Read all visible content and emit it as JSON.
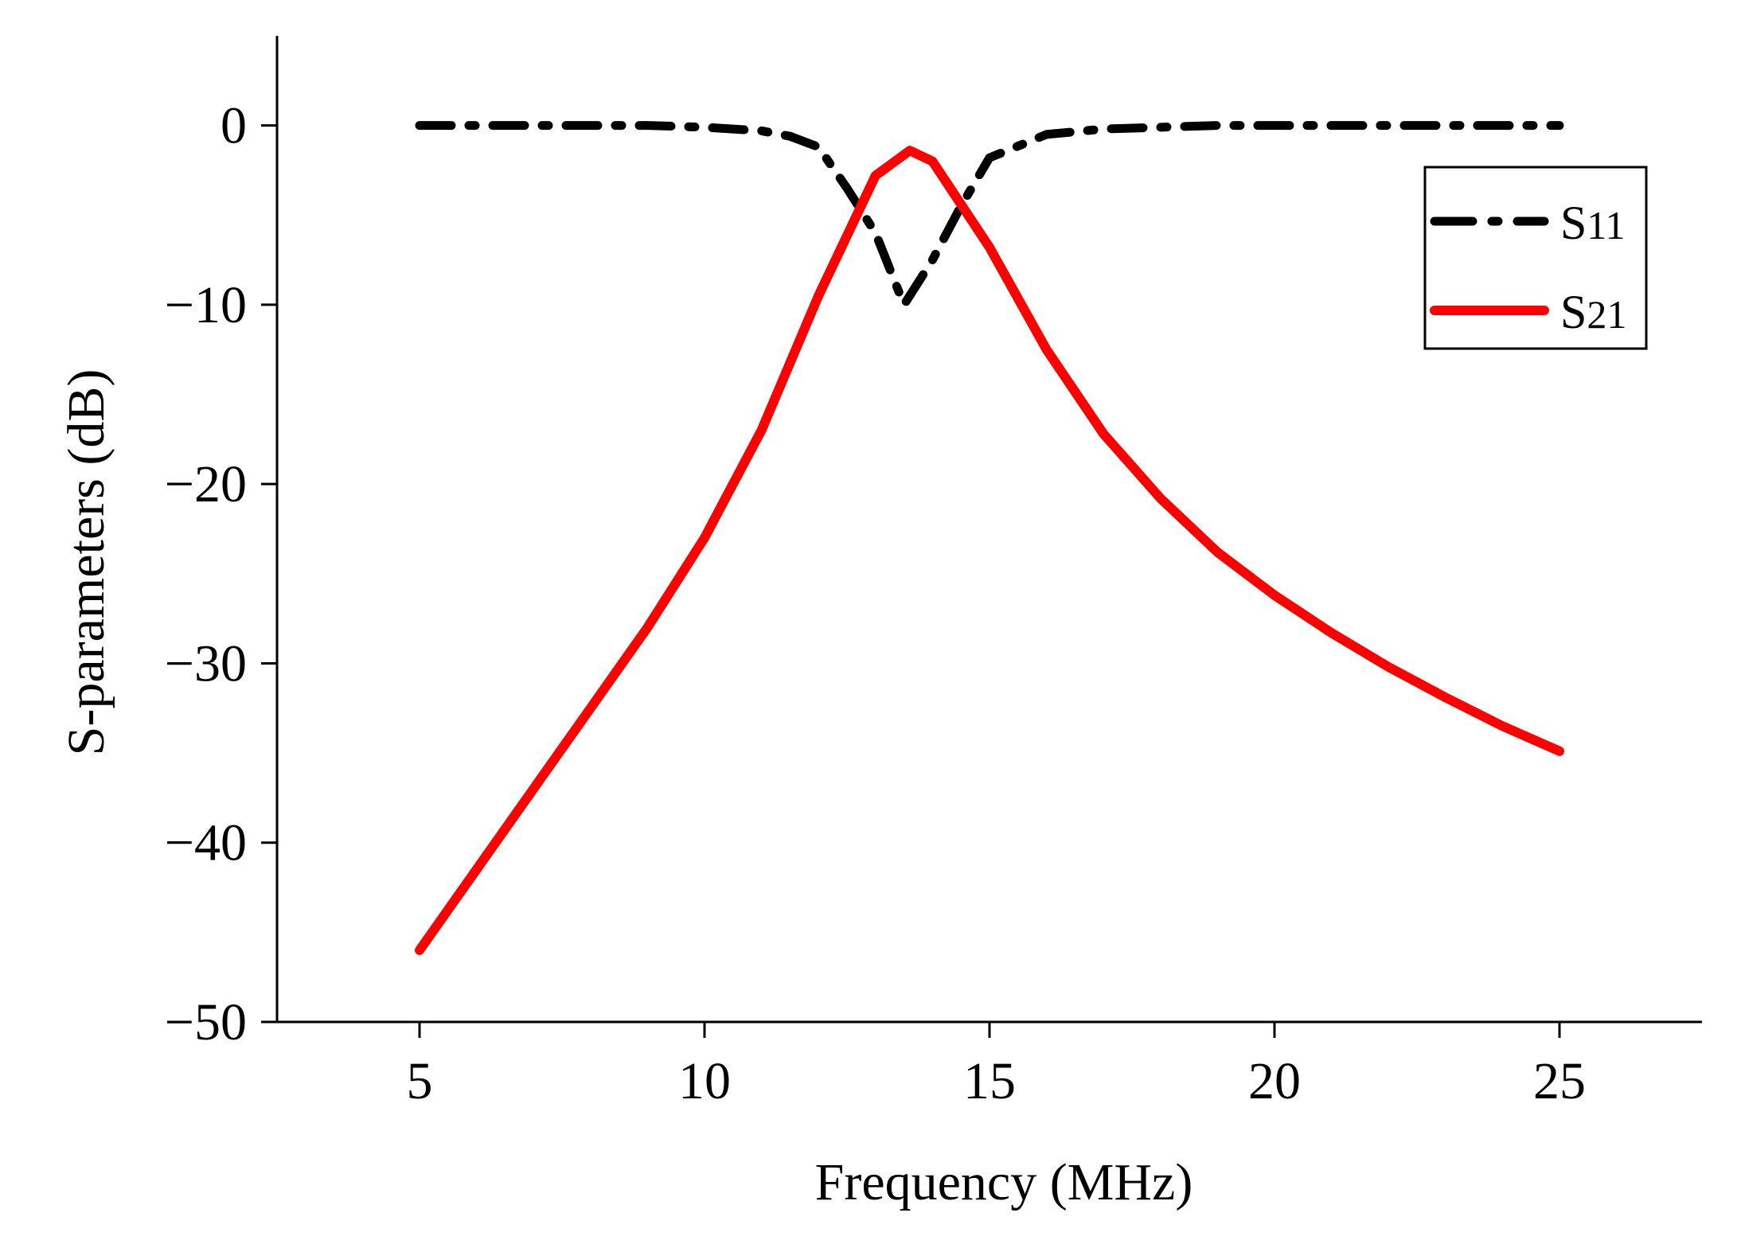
{
  "chart_data": {
    "type": "line",
    "title": "",
    "xlabel": "Frequency (MHz)",
    "ylabel": "S-parameters (dB)",
    "xlim": [
      2.5,
      27.5
    ],
    "ylim": [
      -50,
      5
    ],
    "xticks": [
      5,
      10,
      15,
      20,
      25
    ],
    "yticks": [
      0,
      -10,
      -20,
      -30,
      -40,
      -50
    ],
    "xtick_labels": [
      "5",
      "10",
      "15",
      "20",
      "25"
    ],
    "ytick_labels": [
      "0",
      "−10",
      "−20",
      "−30",
      "−40",
      "−50"
    ],
    "grid": false,
    "legend_position": "top-right",
    "series": [
      {
        "name": "S11",
        "legend_main": "S",
        "legend_sub": "11",
        "color": "#000000",
        "style": "dash-dot",
        "x": [
          5,
          6,
          7,
          8,
          9,
          10,
          11,
          11.5,
          12,
          12.5,
          13,
          13.5,
          14,
          14.5,
          15,
          16,
          17,
          18,
          19,
          20,
          21,
          22,
          23,
          24,
          25
        ],
        "values": [
          0,
          0,
          0,
          0,
          0,
          -0.1,
          -0.3,
          -0.6,
          -1.2,
          -3.5,
          -6.0,
          -10.0,
          -7.5,
          -4.5,
          -1.8,
          -0.5,
          -0.2,
          -0.1,
          0,
          0,
          0,
          0,
          0,
          0,
          0
        ]
      },
      {
        "name": "S21",
        "legend_main": "S",
        "legend_sub": "21",
        "color": "#ff0000",
        "style": "solid",
        "x": [
          5,
          6,
          7,
          8,
          9,
          10,
          11,
          12,
          13,
          13.6,
          14,
          15,
          16,
          17,
          18,
          19,
          20,
          21,
          22,
          23,
          24,
          25
        ],
        "values": [
          -46,
          -41.5,
          -37.0,
          -32.5,
          -28.0,
          -23.0,
          -17.0,
          -9.5,
          -2.8,
          -1.4,
          -2.0,
          -6.8,
          -12.5,
          -17.2,
          -20.8,
          -23.8,
          -26.2,
          -28.3,
          -30.2,
          -31.9,
          -33.5,
          -34.9
        ]
      }
    ]
  }
}
